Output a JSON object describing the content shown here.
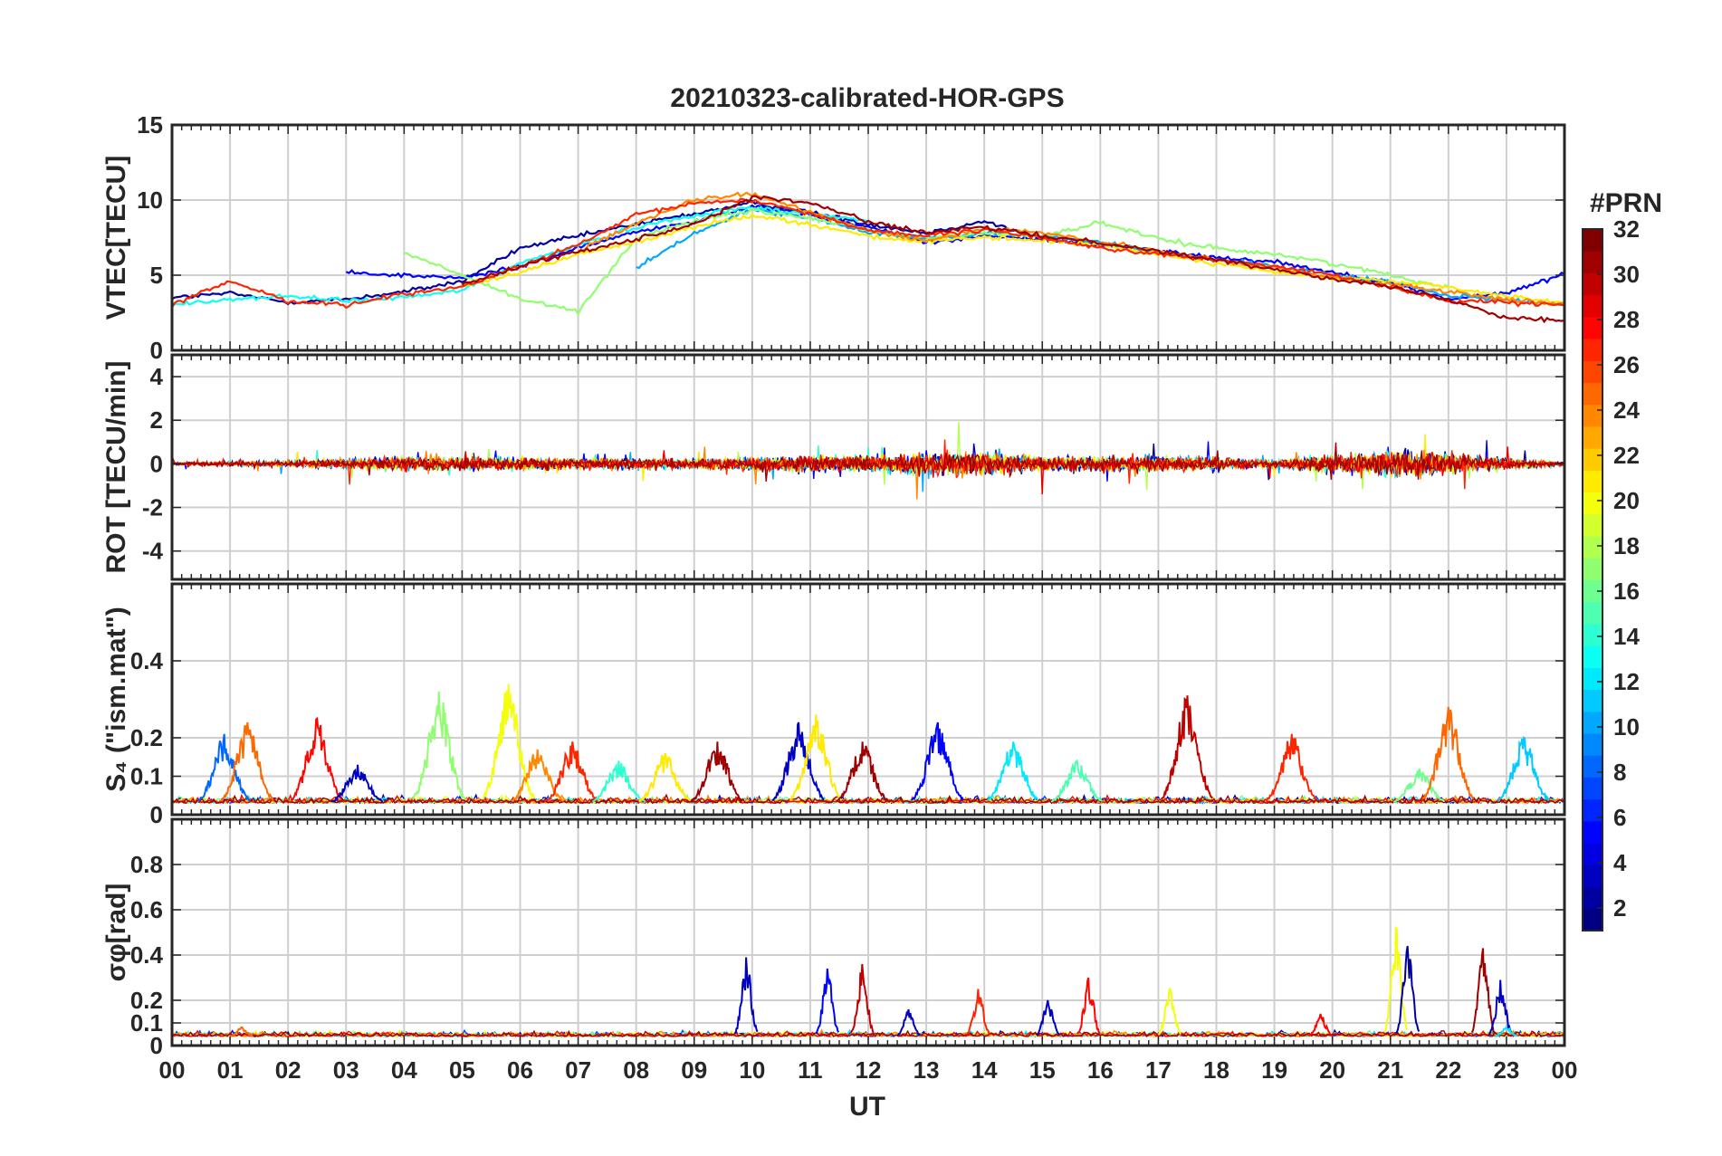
{
  "chart_data": {
    "type": "line",
    "title": "20210323-calibrated-HOR-GPS",
    "xlabel": "UT",
    "x_range": [
      0,
      24
    ],
    "x_tick_labels": [
      "00",
      "01",
      "02",
      "03",
      "04",
      "05",
      "06",
      "07",
      "08",
      "09",
      "10",
      "11",
      "12",
      "13",
      "14",
      "15",
      "16",
      "17",
      "18",
      "19",
      "20",
      "21",
      "22",
      "23",
      "00"
    ],
    "grid": true,
    "colormap": "jet",
    "colorbar": {
      "title": "#PRN",
      "range": [
        1,
        32
      ],
      "ticks": [
        "2",
        "4",
        "6",
        "8",
        "10",
        "12",
        "14",
        "16",
        "18",
        "20",
        "22",
        "24",
        "26",
        "28",
        "30",
        "32"
      ],
      "placement": "right"
    },
    "panels": [
      {
        "id": "vtec",
        "ylabel": "VTEC[TECU]",
        "ylim": [
          0,
          15
        ],
        "yticks": [
          "0",
          "5",
          "10",
          "15"
        ],
        "series": [
          {
            "prn": 2,
            "x": [
              0,
              1,
              2,
              3,
              4,
              5,
              6,
              7,
              8,
              9,
              10,
              11,
              12,
              13,
              14,
              15,
              16
            ],
            "y": [
              3.5,
              3.8,
              3.2,
              3.4,
              3.9,
              4.6,
              6.8,
              7.6,
              8.4,
              9.1,
              9.8,
              9.2,
              8.4,
              7.8,
              8.6,
              7.4,
              7.0
            ]
          },
          {
            "prn": 5,
            "x": [
              3,
              4,
              5,
              6,
              7,
              8,
              9,
              10,
              11,
              12,
              13,
              14,
              15,
              16,
              17,
              18,
              19,
              20,
              21,
              22,
              23,
              24
            ],
            "y": [
              5.2,
              5.0,
              4.8,
              5.6,
              6.8,
              7.9,
              8.6,
              9.6,
              9.0,
              8.2,
              7.2,
              7.6,
              7.4,
              7.0,
              6.6,
              6.2,
              5.9,
              5.2,
              4.5,
              3.4,
              3.8,
              5.1
            ]
          },
          {
            "prn": 10,
            "x": [
              8,
              9,
              10,
              11,
              12,
              13,
              14,
              15,
              16,
              17,
              18,
              19,
              20,
              21,
              22,
              23,
              24
            ],
            "y": [
              5.5,
              7.8,
              9.4,
              8.8,
              7.9,
              7.4,
              7.8,
              7.6,
              7.2,
              6.5,
              6.0,
              5.6,
              5.0,
              4.6,
              3.6,
              3.4,
              3.0
            ]
          },
          {
            "prn": 13,
            "x": [
              0,
              1,
              2,
              3,
              4,
              5,
              6,
              7,
              8,
              9,
              10,
              11,
              12
            ],
            "y": [
              3.0,
              3.4,
              3.6,
              3.3,
              3.5,
              4.0,
              5.8,
              7.0,
              8.2,
              9.0,
              9.5,
              9.1,
              8.6
            ]
          },
          {
            "prn": 17,
            "x": [
              4,
              5,
              6,
              7,
              8,
              9,
              10,
              11,
              12,
              13,
              14,
              15,
              16,
              17,
              18,
              19,
              20,
              21,
              22
            ],
            "y": [
              6.5,
              5.0,
              3.4,
              2.6,
              7.5,
              8.6,
              9.3,
              8.8,
              8.0,
              7.5,
              7.8,
              7.6,
              8.5,
              7.4,
              6.8,
              6.4,
              5.8,
              5.0,
              4.2
            ]
          },
          {
            "prn": 21,
            "x": [
              5,
              6,
              7,
              8,
              9,
              10,
              11,
              12,
              13,
              14,
              15,
              16,
              17,
              18,
              19,
              20,
              21,
              22,
              23,
              24
            ],
            "y": [
              4.3,
              5.2,
              6.4,
              7.2,
              8.2,
              9.0,
              8.4,
              7.6,
              7.2,
              7.5,
              7.3,
              7.0,
              6.4,
              5.8,
              5.2,
              4.8,
              4.6,
              4.2,
              3.6,
              3.2
            ]
          },
          {
            "prn": 24,
            "x": [
              7,
              8,
              9,
              10,
              11,
              12,
              13,
              14,
              15,
              16,
              17,
              18,
              19,
              20,
              21,
              22,
              23,
              24
            ],
            "y": [
              6.6,
              8.4,
              10.0,
              10.4,
              9.2,
              8.0,
              7.3,
              8.1,
              7.8,
              7.2,
              6.6,
              6.0,
              5.5,
              4.9,
              4.4,
              3.9,
              3.4,
              3.0
            ]
          },
          {
            "prn": 27,
            "x": [
              0,
              1,
              2,
              3,
              4,
              5,
              6,
              7,
              8,
              9,
              10,
              11,
              12,
              13,
              14,
              15,
              16,
              17,
              18,
              19,
              20,
              21,
              22,
              23,
              24
            ],
            "y": [
              3.0,
              4.6,
              3.3,
              3.0,
              3.8,
              4.2,
              5.6,
              7.0,
              9.0,
              9.8,
              10.0,
              9.1,
              8.0,
              7.6,
              8.0,
              7.5,
              6.8,
              6.4,
              6.0,
              5.6,
              5.0,
              4.2,
              3.3,
              3.2,
              3.0
            ]
          },
          {
            "prn": 31,
            "x": [
              5,
              6,
              7,
              8,
              9,
              10,
              11,
              12,
              13,
              14,
              15,
              16,
              17,
              18,
              19,
              20,
              21,
              22,
              23,
              24
            ],
            "y": [
              4.4,
              5.6,
              6.6,
              7.4,
              8.4,
              10.2,
              9.8,
              8.6,
              7.8,
              8.2,
              7.6,
              7.2,
              6.6,
              6.0,
              5.4,
              4.8,
              4.2,
              3.4,
              2.2,
              2.0
            ]
          }
        ]
      },
      {
        "id": "rot",
        "ylabel": "ROT [TECU/min]",
        "ylim": [
          -5.3,
          5.0
        ],
        "yticks": [
          "-4",
          "-2",
          "0",
          "2",
          "4"
        ],
        "noise_profile": [
          {
            "x": 0,
            "amp": 0.3
          },
          {
            "x": 2,
            "amp": 0.6
          },
          {
            "x": 4.3,
            "amp": 1.4
          },
          {
            "x": 6,
            "amp": 1.2
          },
          {
            "x": 9,
            "amp": 1.0
          },
          {
            "x": 10,
            "amp": 1.4
          },
          {
            "x": 12,
            "amp": 1.8
          },
          {
            "x": 14,
            "amp": 2.6
          },
          {
            "x": 15,
            "amp": 1.5
          },
          {
            "x": 17.3,
            "amp": 1.6
          },
          {
            "x": 19,
            "amp": 0.8
          },
          {
            "x": 21.3,
            "amp": 3.0
          },
          {
            "x": 22.5,
            "amp": 1.5
          },
          {
            "x": 24,
            "amp": 0.4
          }
        ]
      },
      {
        "id": "s4",
        "ylabel": "S₄ (\"ism.mat\")",
        "ylim": [
          0,
          0.6
        ],
        "yticks": [
          "0",
          "0.1",
          "0.2",
          "0.4"
        ],
        "ytick_values": [
          0,
          0.1,
          0.2,
          0.4
        ],
        "peaks": [
          {
            "x": 0.9,
            "peak": 0.21,
            "prn": 8
          },
          {
            "x": 1.3,
            "peak": 0.24,
            "prn": 25
          },
          {
            "x": 2.5,
            "peak": 0.25,
            "prn": 28
          },
          {
            "x": 3.2,
            "peak": 0.13,
            "prn": 3
          },
          {
            "x": 4.6,
            "peak": 0.32,
            "prn": 17
          },
          {
            "x": 5.8,
            "peak": 0.34,
            "prn": 20
          },
          {
            "x": 6.3,
            "peak": 0.17,
            "prn": 24
          },
          {
            "x": 6.9,
            "peak": 0.19,
            "prn": 27
          },
          {
            "x": 7.7,
            "peak": 0.14,
            "prn": 14
          },
          {
            "x": 8.5,
            "peak": 0.16,
            "prn": 21
          },
          {
            "x": 9.4,
            "peak": 0.19,
            "prn": 31
          },
          {
            "x": 10.8,
            "peak": 0.24,
            "prn": 3
          },
          {
            "x": 11.1,
            "peak": 0.26,
            "prn": 21
          },
          {
            "x": 11.9,
            "peak": 0.19,
            "prn": 31
          },
          {
            "x": 13.2,
            "peak": 0.24,
            "prn": 5
          },
          {
            "x": 14.5,
            "peak": 0.19,
            "prn": 12
          },
          {
            "x": 15.6,
            "peak": 0.14,
            "prn": 15
          },
          {
            "x": 17.5,
            "peak": 0.31,
            "prn": 30
          },
          {
            "x": 19.3,
            "peak": 0.21,
            "prn": 27
          },
          {
            "x": 21.5,
            "peak": 0.12,
            "prn": 16
          },
          {
            "x": 22.0,
            "peak": 0.28,
            "prn": 25
          },
          {
            "x": 23.3,
            "peak": 0.2,
            "prn": 11
          }
        ]
      },
      {
        "id": "sigma_phi",
        "ylabel": "σφ[rad]",
        "ylim": [
          0,
          1.0
        ],
        "yticks": [
          "0",
          "0.1",
          "0.2",
          "0.4",
          "0.6",
          "0.8"
        ],
        "ytick_values": [
          0,
          0.1,
          0.2,
          0.4,
          0.6,
          0.8
        ],
        "peaks": [
          {
            "x": 1.2,
            "peak": 0.08,
            "prn": 25
          },
          {
            "x": 9.9,
            "peak": 0.39,
            "prn": 3
          },
          {
            "x": 11.3,
            "peak": 0.34,
            "prn": 5
          },
          {
            "x": 11.9,
            "peak": 0.36,
            "prn": 30
          },
          {
            "x": 12.7,
            "peak": 0.16,
            "prn": 3
          },
          {
            "x": 13.9,
            "peak": 0.25,
            "prn": 27
          },
          {
            "x": 15.1,
            "peak": 0.2,
            "prn": 3
          },
          {
            "x": 15.8,
            "peak": 0.3,
            "prn": 28
          },
          {
            "x": 17.2,
            "peak": 0.25,
            "prn": 20
          },
          {
            "x": 19.8,
            "peak": 0.14,
            "prn": 28
          },
          {
            "x": 21.1,
            "peak": 0.52,
            "prn": 20
          },
          {
            "x": 21.3,
            "peak": 0.44,
            "prn": 2
          },
          {
            "x": 22.6,
            "peak": 0.43,
            "prn": 31
          },
          {
            "x": 22.9,
            "peak": 0.29,
            "prn": 3
          },
          {
            "x": 23.0,
            "peak": 0.08,
            "prn": 12
          }
        ]
      }
    ]
  }
}
